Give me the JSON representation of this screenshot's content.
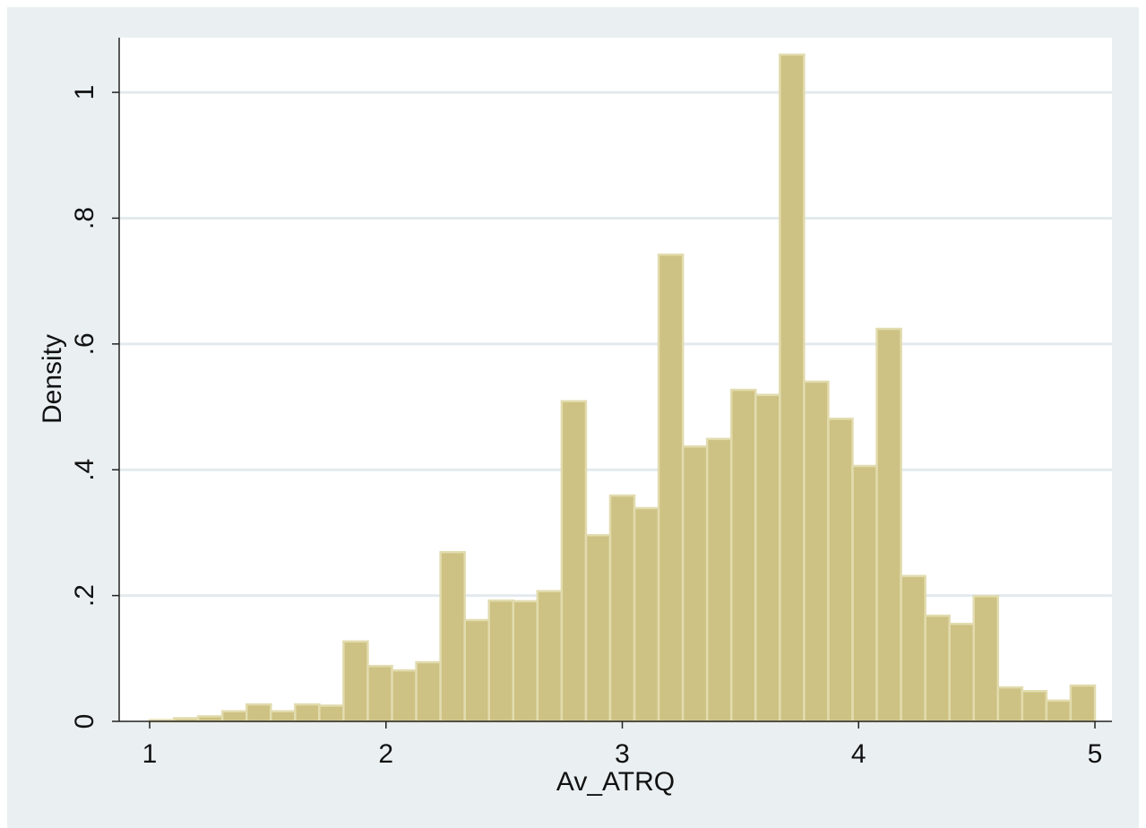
{
  "chart_data": {
    "type": "histogram",
    "x_label": "Av_ATRQ",
    "y_label": "Density",
    "bins": [
      1,
      1.1026,
      1.2051,
      1.3077,
      1.4103,
      1.5128,
      1.6154,
      1.7179,
      1.8205,
      1.9231,
      2.0256,
      2.1282,
      2.2308,
      2.3333,
      2.4359,
      2.5385,
      2.641,
      2.7436,
      2.8462,
      2.9487,
      3.0513,
      3.1538,
      3.2564,
      3.359,
      3.4615,
      3.5641,
      3.6667,
      3.7692,
      3.8718,
      3.9744,
      4.0769,
      4.1795,
      4.2821,
      4.3846,
      4.4872,
      4.5897,
      4.6923,
      4.7949,
      4.8974,
      5
    ],
    "values": [
      0.002,
      0.005,
      0.008,
      0.016,
      0.027,
      0.016,
      0.027,
      0.025,
      0.127,
      0.088,
      0.081,
      0.094,
      0.269,
      0.161,
      0.192,
      0.191,
      0.207,
      0.509,
      0.296,
      0.359,
      0.339,
      0.742,
      0.437,
      0.449,
      0.527,
      0.519,
      1.06,
      0.54,
      0.481,
      0.406,
      0.624,
      0.231,
      0.168,
      0.155,
      0.199,
      0.054,
      0.048,
      0.033,
      0.057
    ],
    "color": "#cdc283",
    "xlim": [
      0.871,
      5.072
    ],
    "ylim": [
      0,
      1.087
    ],
    "xticks": [
      1,
      2,
      3,
      4,
      5
    ],
    "yticks": [
      0,
      {
        "value": 0.2,
        "label": ".2"
      },
      {
        "value": 0.4,
        "label": ".4"
      },
      {
        "value": 0.6,
        "label": ".6"
      },
      {
        "value": 0.8,
        "label": ".8"
      },
      1
    ],
    "grid": true
  }
}
